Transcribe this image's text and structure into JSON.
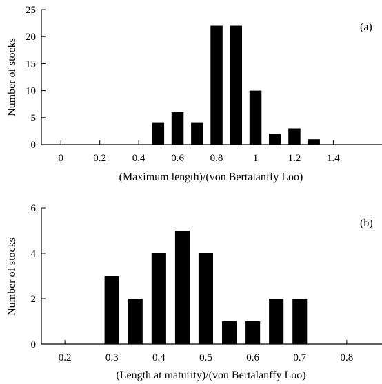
{
  "chart_data": [
    {
      "type": "bar",
      "panel_label": "(a)",
      "xlabel": "(Maximum length)/(von Bertalanffy Loo)",
      "ylabel": "Number of stocks",
      "xlim": [
        -0.1,
        1.65
      ],
      "ylim": [
        0,
        25
      ],
      "xticks": [
        0,
        0.2,
        0.4,
        0.6,
        0.8,
        1,
        1.2,
        1.4
      ],
      "xtick_labels": [
        "0",
        "0.2",
        "0.4",
        "0.6",
        "0.8",
        "1",
        "1.2",
        "1.4"
      ],
      "yticks": [
        0,
        5,
        10,
        15,
        20,
        25
      ],
      "ytick_labels": [
        "0",
        "5",
        "10",
        "15",
        "20",
        "25"
      ],
      "bin_width": 0.1,
      "x": [
        0.5,
        0.6,
        0.7,
        0.8,
        0.9,
        1.0,
        1.1,
        1.2,
        1.3
      ],
      "values": [
        4,
        6,
        4,
        22,
        22,
        10,
        2,
        3,
        1
      ]
    },
    {
      "type": "bar",
      "panel_label": "(b)",
      "xlabel": "(Length at maturity)/(von Bertalanffy Loo)",
      "ylabel": "Number of stocks",
      "xlim": [
        0.15,
        0.875
      ],
      "ylim": [
        0,
        6
      ],
      "xticks": [
        0.2,
        0.3,
        0.4,
        0.5,
        0.6,
        0.7,
        0.8
      ],
      "xtick_labels": [
        "0.2",
        "0.3",
        "0.4",
        "0.5",
        "0.6",
        "0.7",
        "0.8"
      ],
      "yticks": [
        0,
        2,
        4,
        6
      ],
      "ytick_labels": [
        "0",
        "2",
        "4",
        "6"
      ],
      "bin_width": 0.05,
      "x": [
        0.3,
        0.35,
        0.4,
        0.45,
        0.5,
        0.55,
        0.6,
        0.65,
        0.7
      ],
      "values": [
        3,
        2,
        4,
        5,
        4,
        1,
        1,
        2,
        2
      ]
    }
  ]
}
